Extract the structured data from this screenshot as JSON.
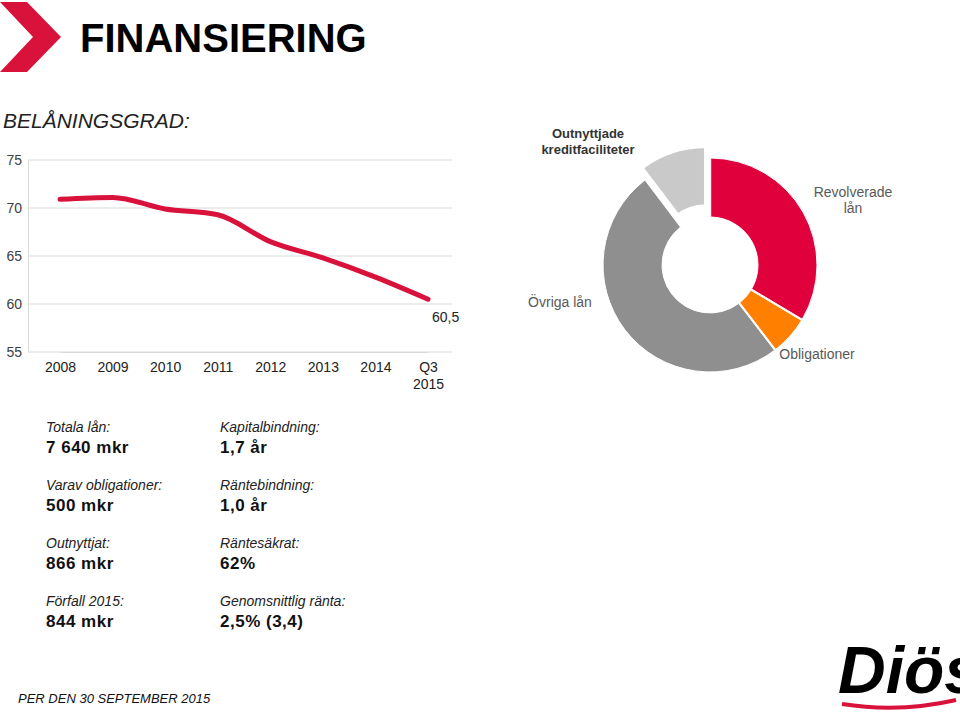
{
  "title": "FINANSIERING",
  "chart_data": [
    {
      "type": "line",
      "title": "BELÅNINGSGRAD:",
      "categories": [
        "2008",
        "2009",
        "2010",
        "2011",
        "2012",
        "2013",
        "2014",
        "Q3\n2015"
      ],
      "values": [
        70.9,
        71.1,
        69.9,
        69.3,
        66.5,
        64.8,
        62.8,
        60.5
      ],
      "value_labels": [
        null,
        null,
        null,
        null,
        null,
        null,
        null,
        "60,5"
      ],
      "data_labels": true,
      "color": "#d9123c",
      "ylim": [
        55,
        75
      ],
      "yticks": [
        55,
        60,
        65,
        70,
        75
      ],
      "grid": true
    },
    {
      "type": "pie",
      "categories": [
        "Revolverade\nlån",
        "Obligationer",
        "Övriga lån",
        "Outnyttjade\nkreditfaciliteter"
      ],
      "values": [
        2860,
        500,
        4280,
        866
      ],
      "colors": [
        "#e0003c",
        "#ff7f00",
        "#8f8f8f",
        "#c9c9c9"
      ]
    }
  ],
  "stats": [
    [
      {
        "label": "Totala lån:",
        "value": "7 640 mkr"
      },
      {
        "label": "Varav obligationer:",
        "value": "500 mkr"
      },
      {
        "label": "Outnyttjat:",
        "value": "866 mkr"
      },
      {
        "label": "Förfall 2015:",
        "value": "844 mkr"
      }
    ],
    [
      {
        "label": "Kapitalbindning:",
        "value": "1,7 år"
      },
      {
        "label": "Räntebindning:",
        "value": "1,0 år"
      },
      {
        "label": "Räntesäkrat:",
        "value": "62%"
      },
      {
        "label": "Genomsnittlig ränta:",
        "value": "2,5% (3,4)"
      }
    ]
  ],
  "footer": "PER DEN 30 SEPTEMBER 2015",
  "logo": "Diös"
}
